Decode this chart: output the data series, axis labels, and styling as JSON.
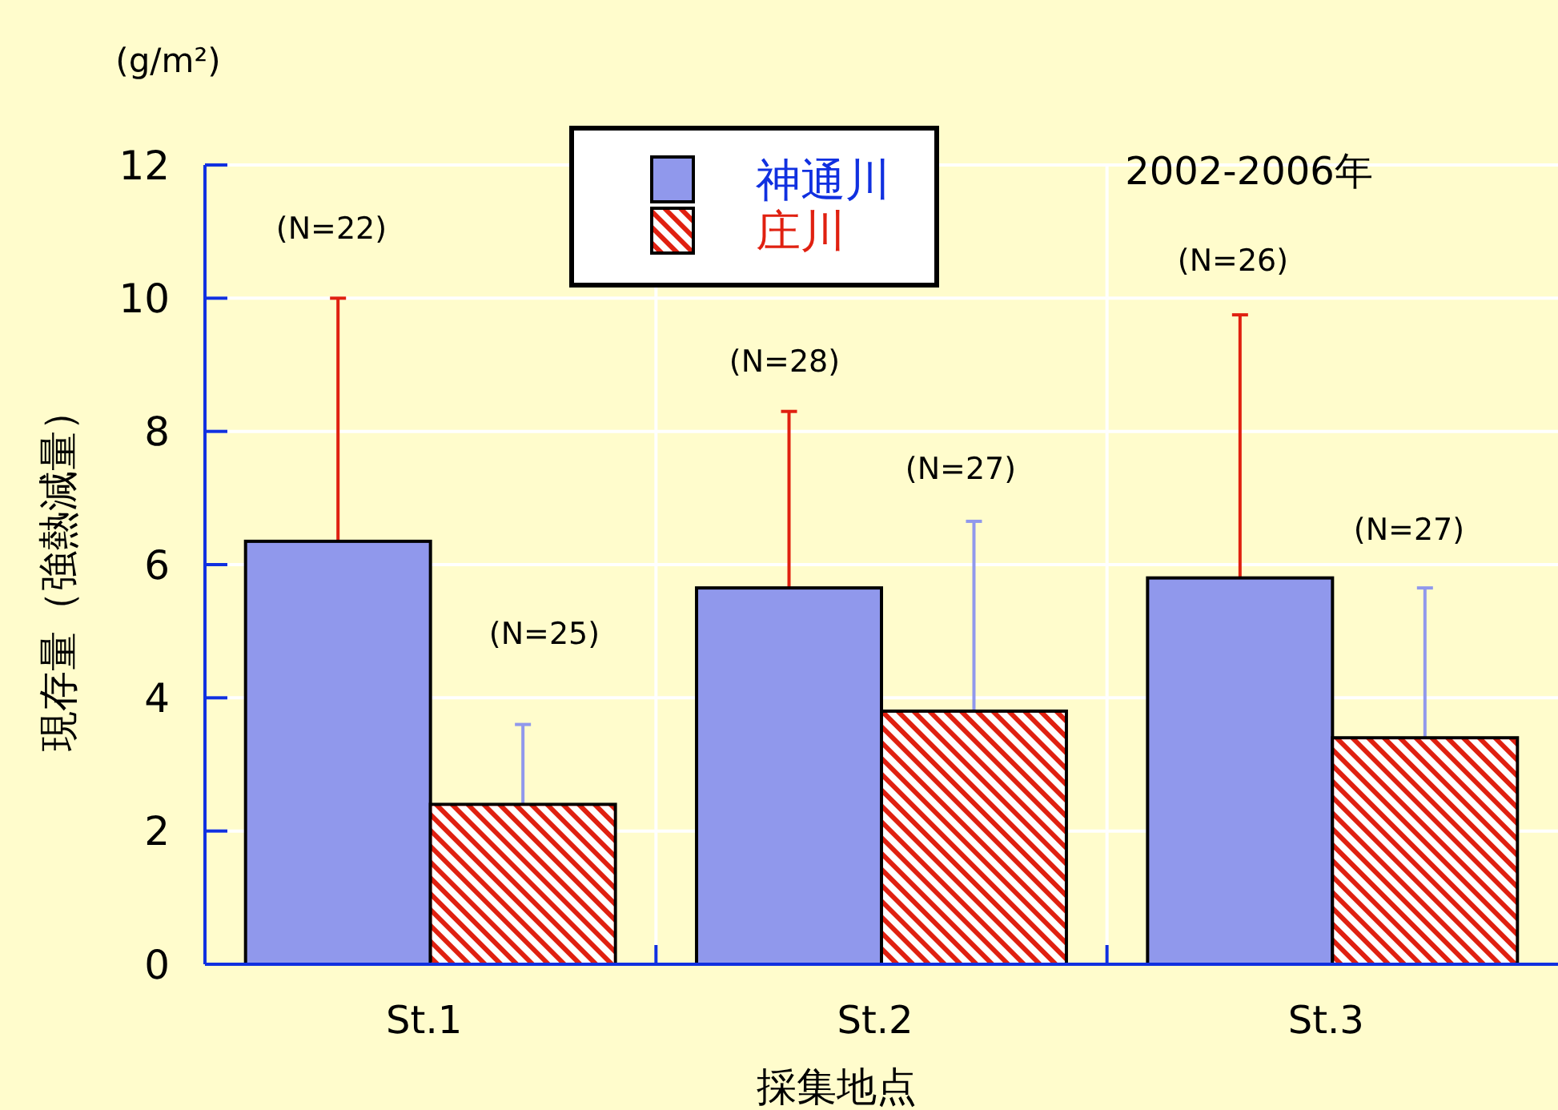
{
  "chart_data": {
    "type": "bar",
    "ylabel": "現存量（強熱減量）",
    "xlabel": "採集地点",
    "annotations": [
      "(g/m²)",
      "2002-2006年",
      "(N=22)",
      "(N=28)",
      "(N=26)",
      "(N=25)",
      "(N=27)",
      "(N=27)"
    ],
    "categories": [
      "St.1",
      "St.2",
      "St.3"
    ],
    "series": [
      {
        "name": "神通川",
        "color": "#9098ec",
        "values": [
          6.35,
          5.65,
          5.8
        ],
        "errors": [
          [
            6.35,
            10.0
          ],
          [
            5.65,
            8.3
          ],
          [
            5.8,
            9.75
          ]
        ]
      },
      {
        "name": "庄川",
        "color": "#e02010",
        "values": [
          2.4,
          3.8,
          3.4
        ],
        "errors": [
          [
            2.4,
            3.6
          ],
          [
            3.8,
            6.65
          ],
          [
            3.4,
            5.65
          ]
        ]
      }
    ],
    "ylim": [
      0,
      12
    ],
    "yticks": [
      0,
      2,
      4,
      6,
      8,
      10,
      12
    ],
    "grid": true,
    "legend": "top"
  }
}
